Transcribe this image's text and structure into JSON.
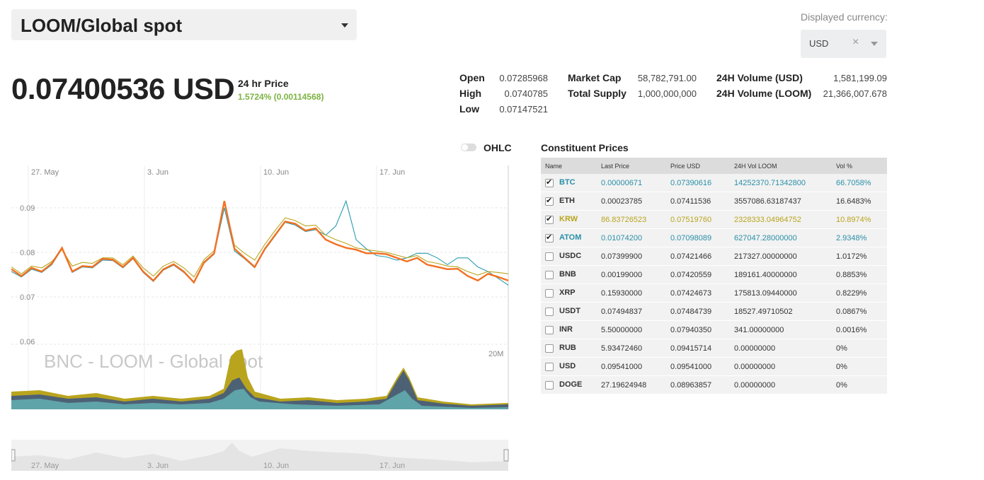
{
  "pair": {
    "label": "LOOM/Global spot"
  },
  "currency": {
    "label": "Displayed currency:",
    "value": "USD",
    "clear": "×"
  },
  "price": {
    "value": "0.07400536 USD",
    "label": "24 hr Price",
    "change": "1.5724% (0.00114568)"
  },
  "stats": {
    "open_label": "Open",
    "open": "0.07285968",
    "high_label": "High",
    "high": "0.0740785",
    "low_label": "Low",
    "low": "0.07147521",
    "mcap_label": "Market Cap",
    "mcap": "58,782,791.00",
    "supply_label": "Total Supply",
    "supply": "1,000,000,000",
    "vol_usd_label": "24H Volume (USD)",
    "vol_usd": "1,581,199.09",
    "vol_loom_label": "24H Volume (LOOM)",
    "vol_loom": "21,366,007.678"
  },
  "chart": {
    "ohlc_label": "OHLC",
    "watermark": "BNC - LOOM - Global spot",
    "vol_label": "20M",
    "x_labels": [
      "27. May",
      "3. Jun",
      "10. Jun",
      "17. Jun"
    ],
    "y_labels": [
      "0.09",
      "0.08",
      "0.07",
      "0.06"
    ]
  },
  "chart_data": {
    "type": "line",
    "ylim": [
      0.06,
      0.095
    ],
    "x_ticks": [
      "27. May",
      "3. Jun",
      "10. Jun",
      "17. Jun"
    ],
    "series": [
      {
        "color": "#f37021",
        "values": [
          0.0765,
          0.075,
          0.0768,
          0.076,
          0.0778,
          0.0812,
          0.076,
          0.0772,
          0.077,
          0.0788,
          0.0786,
          0.077,
          0.079,
          0.076,
          0.074,
          0.0765,
          0.0776,
          0.076,
          0.0736,
          0.078,
          0.08,
          0.0915,
          0.081,
          0.079,
          0.077,
          0.081,
          0.084,
          0.087,
          0.0865,
          0.085,
          0.0855,
          0.083,
          0.082,
          0.0812,
          0.0808,
          0.08,
          0.08,
          0.0798,
          0.079,
          0.0782,
          0.079,
          0.0775,
          0.077,
          0.0765,
          0.0766,
          0.075,
          0.074,
          0.0755,
          0.0748,
          0.074
        ]
      },
      {
        "color": "#2a9bb0",
        "values": [
          0.076,
          0.0748,
          0.0765,
          0.0758,
          0.0775,
          0.081,
          0.0758,
          0.077,
          0.0768,
          0.0785,
          0.0784,
          0.0768,
          0.0788,
          0.0758,
          0.0738,
          0.0763,
          0.0774,
          0.0758,
          0.0735,
          0.0778,
          0.0798,
          0.09,
          0.0805,
          0.0788,
          0.0768,
          0.0808,
          0.0838,
          0.0868,
          0.0862,
          0.0848,
          0.0852,
          0.084,
          0.086,
          0.0915,
          0.083,
          0.081,
          0.0795,
          0.0792,
          0.0785,
          0.079,
          0.08,
          0.08,
          0.079,
          0.0775,
          0.079,
          0.079,
          0.077,
          0.076,
          0.0745,
          0.073
        ]
      },
      {
        "color": "#b9a41d",
        "values": [
          0.077,
          0.0755,
          0.0772,
          0.0768,
          0.0782,
          0.0808,
          0.0772,
          0.078,
          0.0778,
          0.079,
          0.079,
          0.0775,
          0.0794,
          0.0768,
          0.075,
          0.0772,
          0.0782,
          0.0768,
          0.0748,
          0.0786,
          0.0806,
          0.0912,
          0.0818,
          0.08,
          0.0785,
          0.082,
          0.085,
          0.0878,
          0.0872,
          0.086,
          0.0862,
          0.084,
          0.083,
          0.0822,
          0.0812,
          0.0808,
          0.0805,
          0.0802,
          0.0796,
          0.079,
          0.0795,
          0.0782,
          0.0778,
          0.0772,
          0.077,
          0.076,
          0.0752,
          0.076,
          0.0758,
          0.0755
        ]
      }
    ]
  },
  "navigator": {
    "x_labels": [
      "27. May",
      "3. Jun",
      "10. Jun",
      "17. Jun"
    ]
  },
  "constituents": {
    "title": "Constituent Prices",
    "headers": [
      "Name",
      "Last Price",
      "Price USD",
      "24H Vol LOOM",
      "Vol %"
    ],
    "rows": [
      {
        "checked": true,
        "name": "BTC",
        "last": "0.00000671",
        "usd": "0.07390616",
        "vol": "14252370.71342800",
        "pct": "66.7058%",
        "color": "#2a8fa8"
      },
      {
        "checked": true,
        "name": "ETH",
        "last": "0.00023785",
        "usd": "0.07411536",
        "vol": "3557086.63187437",
        "pct": "16.6483%",
        "color": "#333333"
      },
      {
        "checked": true,
        "name": "KRW",
        "last": "86.83726523",
        "usd": "0.07519760",
        "vol": "2328333.04964752",
        "pct": "10.8974%",
        "color": "#b9a41d"
      },
      {
        "checked": true,
        "name": "ATOM",
        "last": "0.01074200",
        "usd": "0.07098089",
        "vol": "627047.28000000",
        "pct": "2.9348%",
        "color": "#2a8fa8"
      },
      {
        "checked": false,
        "name": "USDC",
        "last": "0.07399900",
        "usd": "0.07421466",
        "vol": "217327.00000000",
        "pct": "1.0172%",
        "color": "#333333"
      },
      {
        "checked": false,
        "name": "BNB",
        "last": "0.00199000",
        "usd": "0.07420559",
        "vol": "189161.40000000",
        "pct": "0.8853%",
        "color": "#333333"
      },
      {
        "checked": false,
        "name": "XRP",
        "last": "0.15930000",
        "usd": "0.07424673",
        "vol": "175813.09440000",
        "pct": "0.8229%",
        "color": "#333333"
      },
      {
        "checked": false,
        "name": "USDT",
        "last": "0.07494837",
        "usd": "0.07484739",
        "vol": "18527.49710502",
        "pct": "0.0867%",
        "color": "#333333"
      },
      {
        "checked": false,
        "name": "INR",
        "last": "5.50000000",
        "usd": "0.07940350",
        "vol": "341.00000000",
        "pct": "0.0016%",
        "color": "#333333"
      },
      {
        "checked": false,
        "name": "RUB",
        "last": "5.93472460",
        "usd": "0.09415714",
        "vol": "0.00000000",
        "pct": "0%",
        "color": "#333333"
      },
      {
        "checked": false,
        "name": "USD",
        "last": "0.09541000",
        "usd": "0.09541000",
        "vol": "0.00000000",
        "pct": "0%",
        "color": "#333333"
      },
      {
        "checked": false,
        "name": "DOGE",
        "last": "27.19624948",
        "usd": "0.08963857",
        "vol": "0.00000000",
        "pct": "0%",
        "color": "#333333"
      }
    ]
  }
}
